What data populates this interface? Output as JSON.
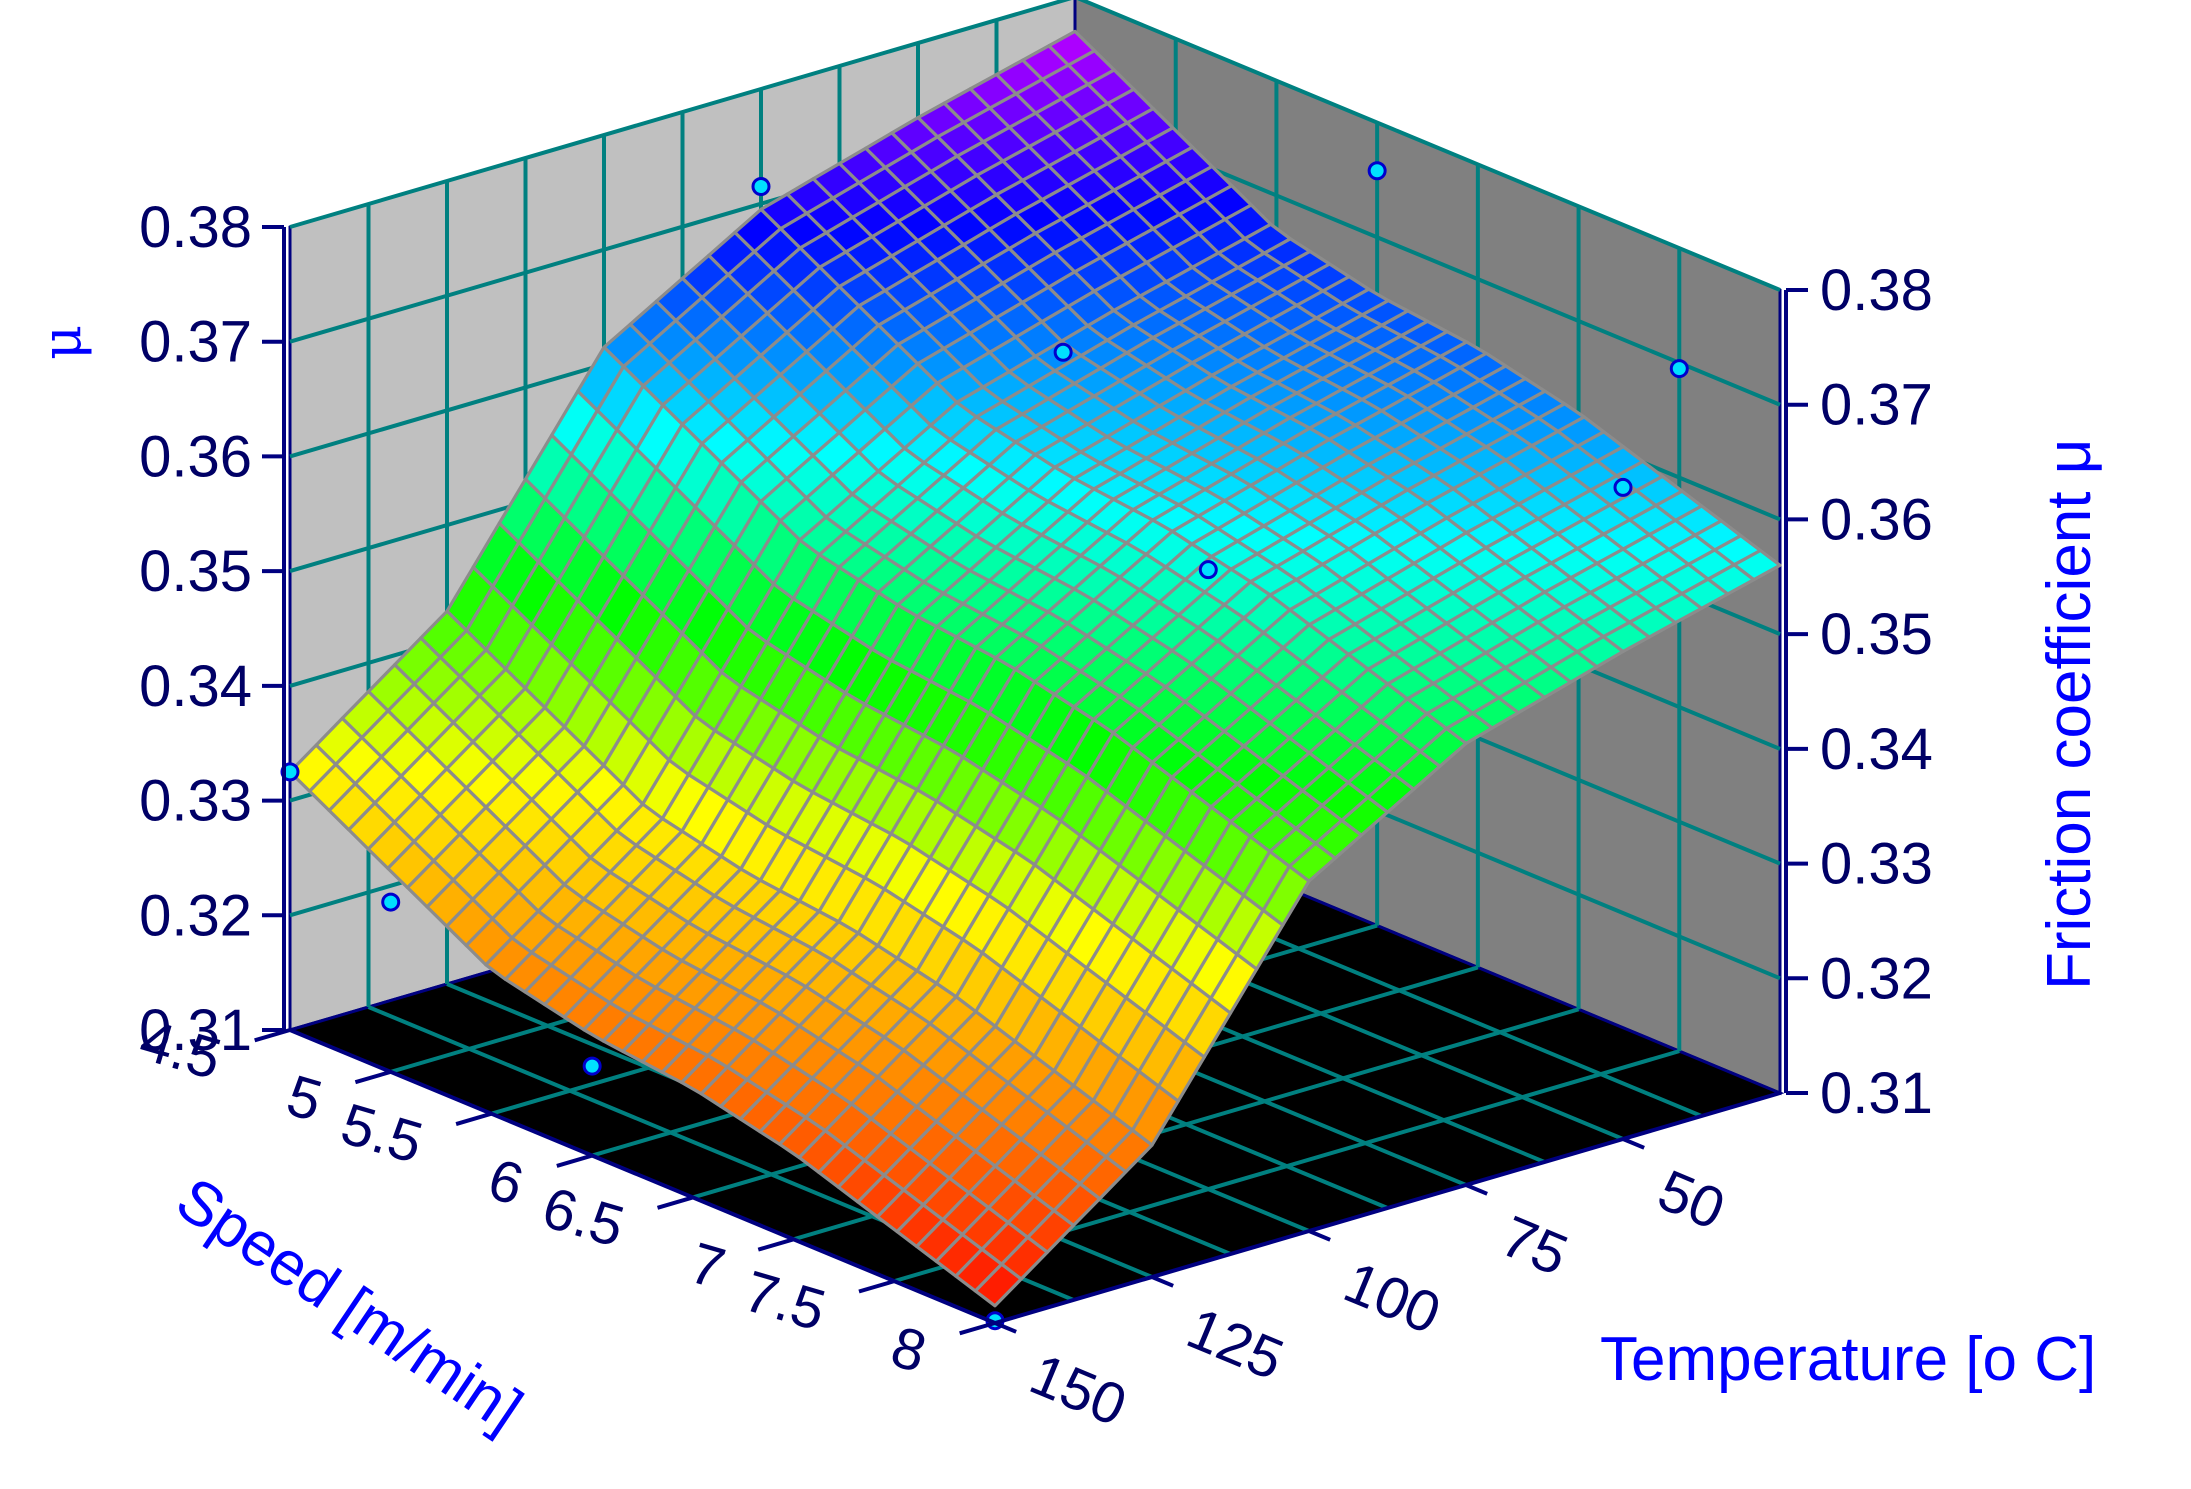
{
  "chart_data": {
    "type": "surface",
    "x": {
      "label": "Speed [m/min]",
      "ticks": [
        "4.5",
        "5",
        "5.5",
        "6",
        "6.5",
        "7",
        "7.5",
        "8"
      ],
      "range": [
        4.5,
        8
      ]
    },
    "y": {
      "label": "Temperature [o C]",
      "ticks": [
        "50",
        "75",
        "100",
        "125",
        "150"
      ],
      "range": [
        25,
        150
      ]
    },
    "z": {
      "label_left": "μ",
      "label_right": "Friction coefficient μ",
      "ticks": [
        "0.31",
        "0.32",
        "0.33",
        "0.34",
        "0.35",
        "0.36",
        "0.37",
        "0.38"
      ],
      "range": [
        0.31,
        0.38
      ]
    },
    "z_at_speed": [
      0.331,
      0.326,
      0.321,
      0.319,
      0.318,
      0.316,
      0.313,
      0.31
    ],
    "z_at_temperature": [
      0.3795,
      0.376,
      0.372,
      0.364,
      0.345,
      0.335
    ],
    "temperature_grid": [
      25,
      50,
      75,
      100,
      125,
      150
    ],
    "measured_points": [
      {
        "speed": 4.5,
        "temperature": 150,
        "mu": 0.3325
      },
      {
        "speed": 5,
        "temperature": 150,
        "mu": 0.3248
      },
      {
        "speed": 6,
        "temperature": 150,
        "mu": 0.3178
      },
      {
        "speed": 8,
        "temperature": 150,
        "mu": 0.3102
      },
      {
        "speed": 4.5,
        "temperature": 25,
        "mu": 0.3815
      },
      {
        "speed": 6,
        "temperature": 25,
        "mu": 0.3758
      },
      {
        "speed": 7.5,
        "temperature": 25,
        "mu": 0.3695
      },
      {
        "speed": 4.5,
        "temperature": 75,
        "mu": 0.3715
      },
      {
        "speed": 6,
        "temperature": 75,
        "mu": 0.368
      },
      {
        "speed": 8,
        "temperature": 50,
        "mu": 0.3668
      },
      {
        "speed": 7.5,
        "temperature": 100,
        "mu": 0.364
      }
    ],
    "colors": {
      "back_wall": "#c0c0c0",
      "side_wall": "#808080",
      "floor": "#000000",
      "grid": "#008080",
      "axis": "#000080",
      "mesh": "#8c8c8c",
      "marker_fill": "#00e0ff",
      "marker_stroke": "#0000cc"
    },
    "colormap": [
      "#ff0000",
      "#ff8000",
      "#ffff00",
      "#00ff00",
      "#00ffff",
      "#0000ff",
      "#ff00ff"
    ]
  }
}
